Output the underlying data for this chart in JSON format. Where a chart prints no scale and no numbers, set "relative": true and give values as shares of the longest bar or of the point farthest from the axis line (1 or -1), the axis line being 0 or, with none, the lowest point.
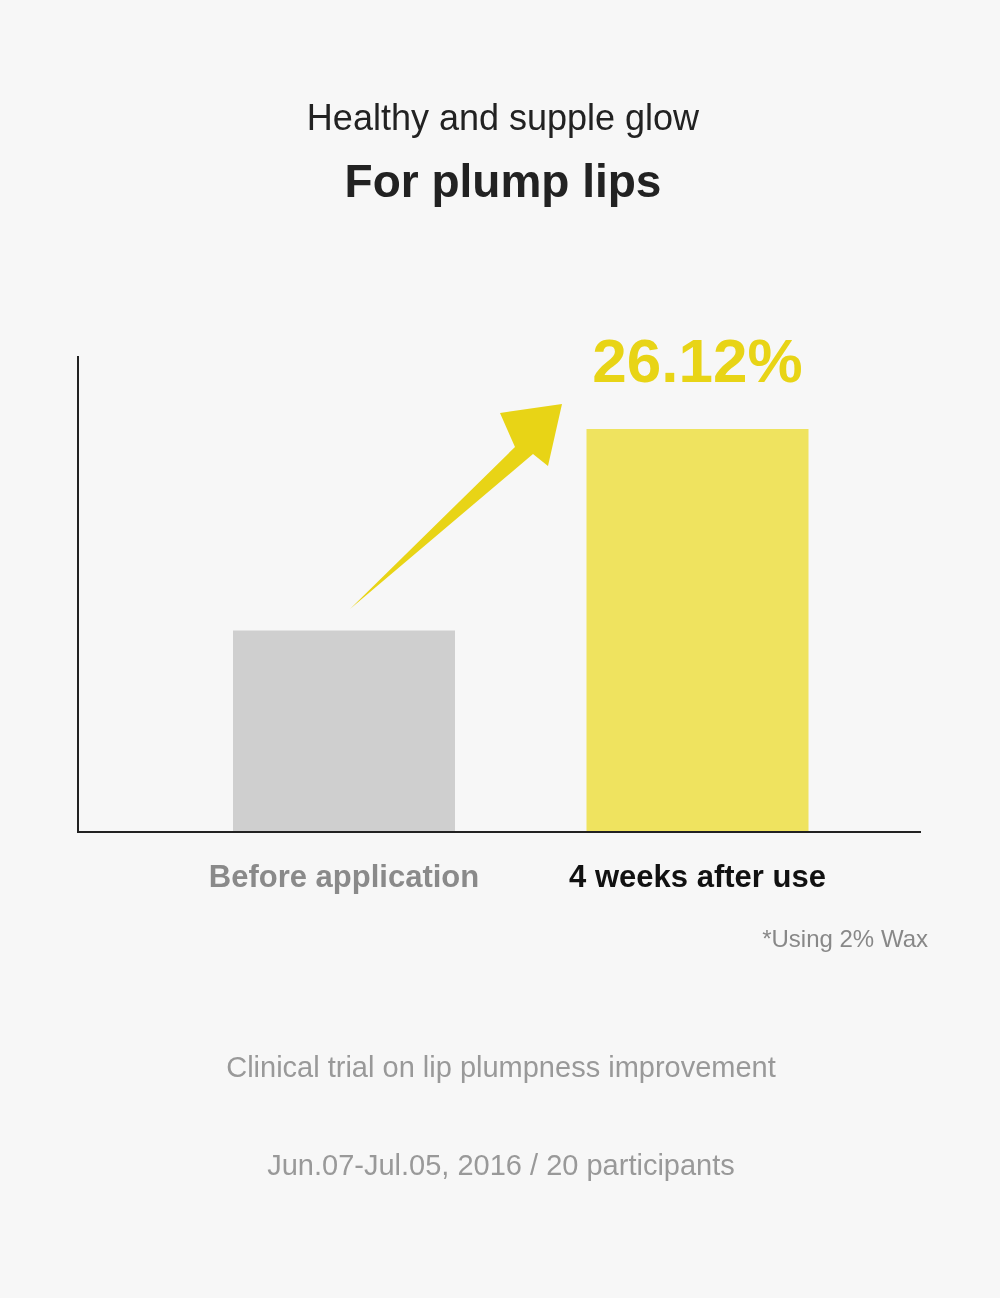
{
  "chart_data": {
    "type": "bar",
    "title": "Healthy and supple glow",
    "subtitle": "For plump lips",
    "categories": [
      "Before application",
      "4 weeks after use"
    ],
    "values": [
      0.5,
      1
    ],
    "colors": [
      "#cfcfcf",
      "#efe35f"
    ],
    "relative": true,
    "annotations": [
      "26.12%",
      "*Using 2% Wax",
      "Clinical trial on lip plumpness improvement",
      "Jun.07-Jul.05, 2016 / 20 participants"
    ]
  }
}
